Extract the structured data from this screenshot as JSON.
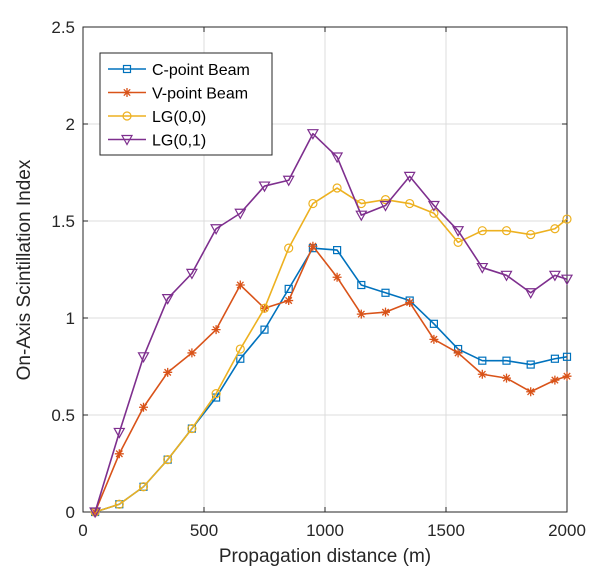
{
  "chart_data": {
    "type": "line",
    "title": "",
    "xlabel": "Propagation distance (m)",
    "ylabel": "On-Axis Scintillation Index",
    "xlim": [
      0,
      2000
    ],
    "ylim": [
      0,
      2.5
    ],
    "xticks": [
      0,
      500,
      1000,
      1500,
      2000
    ],
    "yticks": [
      0,
      0.5,
      1,
      1.5,
      2,
      2.5
    ],
    "xtick_labels": [
      "0",
      "500",
      "1000",
      "1500",
      "2000"
    ],
    "ytick_labels": [
      "0",
      "0.5",
      "1",
      "1.5",
      "2",
      "2.5"
    ],
    "grid": true,
    "legend_position": "top-left",
    "x": [
      50,
      150,
      250,
      350,
      450,
      550,
      650,
      750,
      850,
      950,
      1050,
      1150,
      1250,
      1350,
      1450,
      1550,
      1650,
      1750,
      1850,
      1950,
      2000
    ],
    "series": [
      {
        "name": "C-point Beam",
        "color": "#0072BD",
        "marker": "square",
        "values": [
          0.0,
          0.04,
          0.13,
          0.27,
          0.43,
          0.59,
          0.79,
          0.94,
          1.15,
          1.36,
          1.35,
          1.17,
          1.13,
          1.09,
          0.97,
          0.84,
          0.78,
          0.78,
          0.76,
          0.79,
          0.8
        ]
      },
      {
        "name": "V-point Beam",
        "color": "#D95319",
        "marker": "asterisk",
        "values": [
          0.0,
          0.3,
          0.54,
          0.72,
          0.82,
          0.94,
          1.17,
          1.05,
          1.09,
          1.37,
          1.21,
          1.02,
          1.03,
          1.08,
          0.89,
          0.82,
          0.71,
          0.69,
          0.62,
          0.68,
          0.7
        ]
      },
      {
        "name": "LG(0,0)",
        "color": "#EDB120",
        "marker": "circle",
        "values": [
          0.0,
          0.04,
          0.13,
          0.27,
          0.43,
          0.61,
          0.84,
          1.05,
          1.36,
          1.59,
          1.67,
          1.59,
          1.61,
          1.59,
          1.54,
          1.39,
          1.45,
          1.45,
          1.43,
          1.46,
          1.51
        ]
      },
      {
        "name": "LG(0,1)",
        "color": "#7E2F8E",
        "marker": "triangle-down",
        "values": [
          0.0,
          0.41,
          0.8,
          1.1,
          1.23,
          1.46,
          1.54,
          1.68,
          1.71,
          1.95,
          1.83,
          1.53,
          1.58,
          1.73,
          1.58,
          1.45,
          1.26,
          1.22,
          1.13,
          1.22,
          1.2
        ]
      }
    ]
  }
}
